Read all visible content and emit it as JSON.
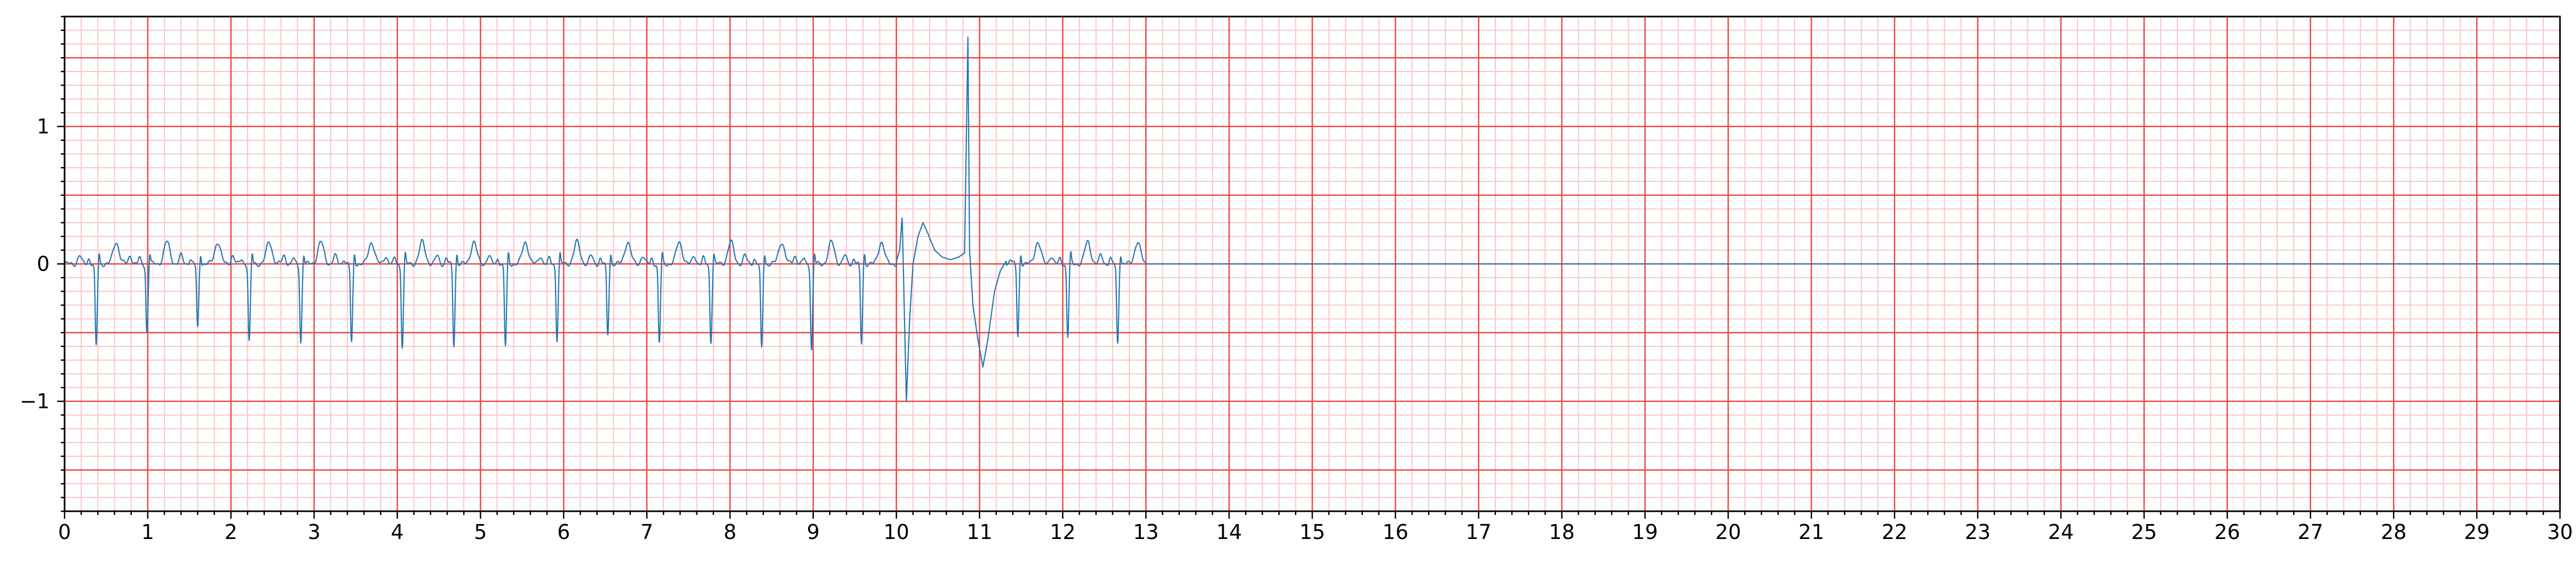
{
  "chart_data": {
    "type": "line",
    "title": "",
    "xlabel": "",
    "ylabel": "",
    "xlim": [
      0,
      30
    ],
    "ylim": [
      -1.8,
      1.8
    ],
    "grid": {
      "major_x_step": 1,
      "major_y_step": 0.5,
      "minor_x_step": 0.2,
      "minor_y_step": 0.1,
      "major_color": "#ef4444",
      "minor_color": "#fcc4c4"
    },
    "x_ticks": [
      0,
      1,
      2,
      3,
      4,
      5,
      6,
      7,
      8,
      9,
      10,
      11,
      12,
      13,
      14,
      15,
      16,
      17,
      18,
      19,
      20,
      21,
      22,
      23,
      24,
      25,
      26,
      27,
      28,
      29,
      30
    ],
    "x_tick_labels": [
      "0",
      "1",
      "2",
      "3",
      "4",
      "5",
      "6",
      "7",
      "8",
      "9",
      "10",
      "11",
      "12",
      "13",
      "14",
      "15",
      "16",
      "17",
      "18",
      "19",
      "20",
      "21",
      "22",
      "23",
      "24",
      "25",
      "26",
      "27",
      "28",
      "29",
      "30"
    ],
    "y_ticks": [
      -1,
      0,
      1
    ],
    "y_tick_labels": [
      "−1",
      "0",
      "1"
    ],
    "series": [
      {
        "color": "#1f77b4",
        "beats": [
          {
            "r": 0.38,
            "depth": -0.6
          },
          {
            "r": 0.99,
            "depth": -0.5
          },
          {
            "r": 1.6,
            "depth": -0.47
          },
          {
            "r": 2.22,
            "depth": -0.57
          },
          {
            "r": 2.84,
            "depth": -0.57
          },
          {
            "r": 3.45,
            "depth": -0.58
          },
          {
            "r": 4.06,
            "depth": -0.6
          },
          {
            "r": 4.68,
            "depth": -0.59
          },
          {
            "r": 5.3,
            "depth": -0.6
          },
          {
            "r": 5.92,
            "depth": -0.55
          },
          {
            "r": 6.53,
            "depth": -0.52
          },
          {
            "r": 7.15,
            "depth": -0.58
          },
          {
            "r": 7.77,
            "depth": -0.57
          },
          {
            "r": 8.38,
            "depth": -0.62
          },
          {
            "r": 8.98,
            "depth": -0.62
          },
          {
            "r": 9.58,
            "depth": -0.58
          },
          {
            "r": 11.46,
            "depth": -0.53
          },
          {
            "r": 12.06,
            "depth": -0.53
          },
          {
            "r": 12.66,
            "depth": -0.58
          }
        ],
        "artifact": [
          [
            10.0,
            0.02
          ],
          [
            10.04,
            0.1
          ],
          [
            10.07,
            0.35
          ],
          [
            10.09,
            -0.2
          ],
          [
            10.12,
            -1.0
          ],
          [
            10.16,
            -0.4
          ],
          [
            10.2,
            0.0
          ],
          [
            10.26,
            0.2
          ],
          [
            10.32,
            0.3
          ],
          [
            10.38,
            0.22
          ],
          [
            10.46,
            0.1
          ],
          [
            10.55,
            0.05
          ],
          [
            10.65,
            0.03
          ],
          [
            10.75,
            0.05
          ],
          [
            10.82,
            0.08
          ],
          [
            10.86,
            1.65
          ],
          [
            10.88,
            0.1
          ],
          [
            10.92,
            -0.3
          ],
          [
            10.98,
            -0.55
          ],
          [
            11.04,
            -0.75
          ],
          [
            11.1,
            -0.55
          ],
          [
            11.18,
            -0.2
          ],
          [
            11.25,
            -0.05
          ],
          [
            11.32,
            0.02
          ]
        ],
        "signal_end": 13.0,
        "baseline": 0.0
      }
    ]
  }
}
